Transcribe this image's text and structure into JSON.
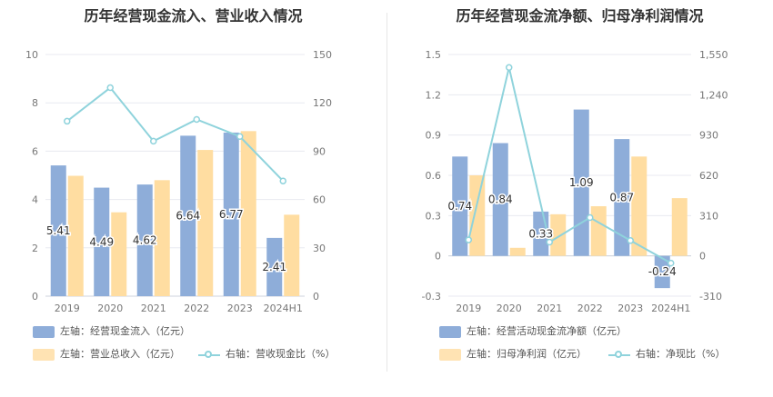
{
  "colors": {
    "bar1": "#8eadd9",
    "bar2": "#ffdda1",
    "line": "#8fd3dc",
    "grid": "#e8eaf0",
    "axis_text": "#777777"
  },
  "chart_data": [
    {
      "type": "bar",
      "title": "历年经营现金流入、营业收入情况",
      "categories": [
        "2019",
        "2020",
        "2021",
        "2022",
        "2023",
        "2024H1"
      ],
      "series": [
        {
          "name": "左轴：经营现金流入（亿元）",
          "axis": "left",
          "kind": "bar",
          "values": [
            5.41,
            4.49,
            4.62,
            6.64,
            6.77,
            2.41
          ],
          "labels": [
            "5.41",
            "4.49",
            "4.62",
            "6.64",
            "6.77",
            "2.41"
          ]
        },
        {
          "name": "左轴：营业总收入（亿元）",
          "axis": "left",
          "kind": "bar",
          "values": [
            4.98,
            3.47,
            4.8,
            6.05,
            6.83,
            3.37
          ]
        },
        {
          "name": "右轴：营收现金比（%）",
          "axis": "right",
          "kind": "line",
          "values": [
            108.6,
            129.4,
            96.2,
            109.7,
            99.1,
            71.5
          ]
        }
      ],
      "ylim_left": [
        0,
        10
      ],
      "yticks_left": [
        "0",
        "2",
        "4",
        "6",
        "8",
        "10"
      ],
      "ylim_right": [
        0,
        150
      ],
      "yticks_right": [
        "0",
        "30",
        "60",
        "90",
        "120",
        "150"
      ],
      "legend_position": "bottom-left",
      "grid": true
    },
    {
      "type": "bar",
      "title": "历年经营现金流净额、归母净利润情况",
      "categories": [
        "2019",
        "2020",
        "2021",
        "2022",
        "2023",
        "2024H1"
      ],
      "series": [
        {
          "name": "左轴：经营活动现金流净额（亿元）",
          "axis": "left",
          "kind": "bar",
          "values": [
            0.74,
            0.84,
            0.33,
            1.09,
            0.87,
            -0.24
          ],
          "labels": [
            "0.74",
            "0.84",
            "0.33",
            "1.09",
            "0.87",
            "-0.24"
          ]
        },
        {
          "name": "左轴：归母净利润（亿元）",
          "axis": "left",
          "kind": "bar",
          "values": [
            0.6,
            0.06,
            0.31,
            0.37,
            0.74,
            0.43
          ]
        },
        {
          "name": "右轴：净现比（%）",
          "axis": "right",
          "kind": "line",
          "values": [
            123,
            1450,
            106,
            295,
            118,
            -56
          ]
        }
      ],
      "ylim_left": [
        -0.3,
        1.5
      ],
      "yticks_left": [
        "-0.3",
        "0",
        "0.3",
        "0.6",
        "0.9",
        "1.2",
        "1.5"
      ],
      "ylim_right": [
        -310,
        1550
      ],
      "yticks_right": [
        "-310",
        "0",
        "310",
        "620",
        "930",
        "1,240",
        "1,550"
      ],
      "legend_position": "bottom-left",
      "grid": true
    }
  ]
}
